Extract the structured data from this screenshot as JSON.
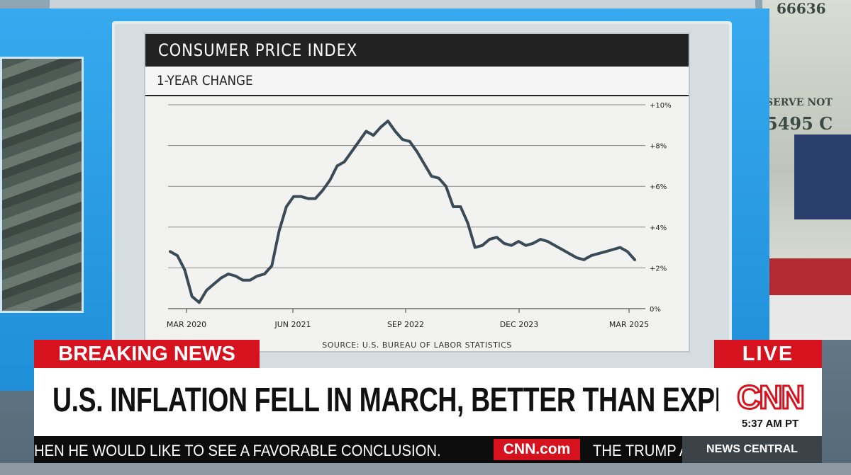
{
  "chart_data": {
    "type": "line",
    "title": "CONSUMER PRICE INDEX",
    "subtitle": "1-YEAR CHANGE",
    "source": "SOURCE: U.S. BUREAU OF LABOR STATISTICS",
    "x_tick_labels": [
      "MAR 2020",
      "JUN 2021",
      "SEP 2022",
      "DEC 2023",
      "MAR 2025"
    ],
    "y_tick_labels": [
      "0%",
      "+2%",
      "+4%",
      "+6%",
      "+8%",
      "+10%"
    ],
    "ylim": [
      0,
      10
    ],
    "grid": true,
    "series": [
      {
        "values": [
          2.8,
          2.6,
          1.9,
          0.6,
          0.3,
          0.9,
          1.2,
          1.5,
          1.7,
          1.6,
          1.4,
          1.4,
          1.6,
          1.7,
          2.1,
          3.8,
          5.0,
          5.5,
          5.5,
          5.4,
          5.4,
          5.8,
          6.3,
          7.0,
          7.2,
          7.7,
          8.2,
          8.7,
          8.5,
          8.9,
          9.2,
          8.7,
          8.3,
          8.2,
          7.7,
          7.1,
          6.5,
          6.4,
          6.0,
          5.0,
          5.0,
          4.2,
          3.0,
          3.1,
          3.4,
          3.5,
          3.2,
          3.1,
          3.3,
          3.1,
          3.2,
          3.4,
          3.3,
          3.1,
          2.9,
          2.7,
          2.5,
          2.4,
          2.6,
          2.7,
          2.8,
          2.9,
          3.0,
          2.8,
          2.4
        ]
      }
    ]
  },
  "banner": {
    "breaking": "BREAKING NEWS",
    "live": "LIVE",
    "headline": "U.S. INFLATION FELL IN MARCH, BETTER THAN EXPECTED",
    "network_logo": "CNN",
    "time": "5:37 AM PT"
  },
  "ticker": {
    "text1": "HEN HE WOULD LIKE TO SEE A FAVORABLE CONCLUSION.",
    "logo": "CNN.com",
    "text2": "THE TRUMP AD",
    "program": "NEWS CENTRAL"
  },
  "background": {
    "bill_serial": "5495 C",
    "bill_reserve": "SERVE NOT",
    "bill_top": "66636"
  },
  "colors": {
    "line": "#3a4a56",
    "breaking_red": "#d6121f",
    "frame_blue": "#2a9be0"
  }
}
